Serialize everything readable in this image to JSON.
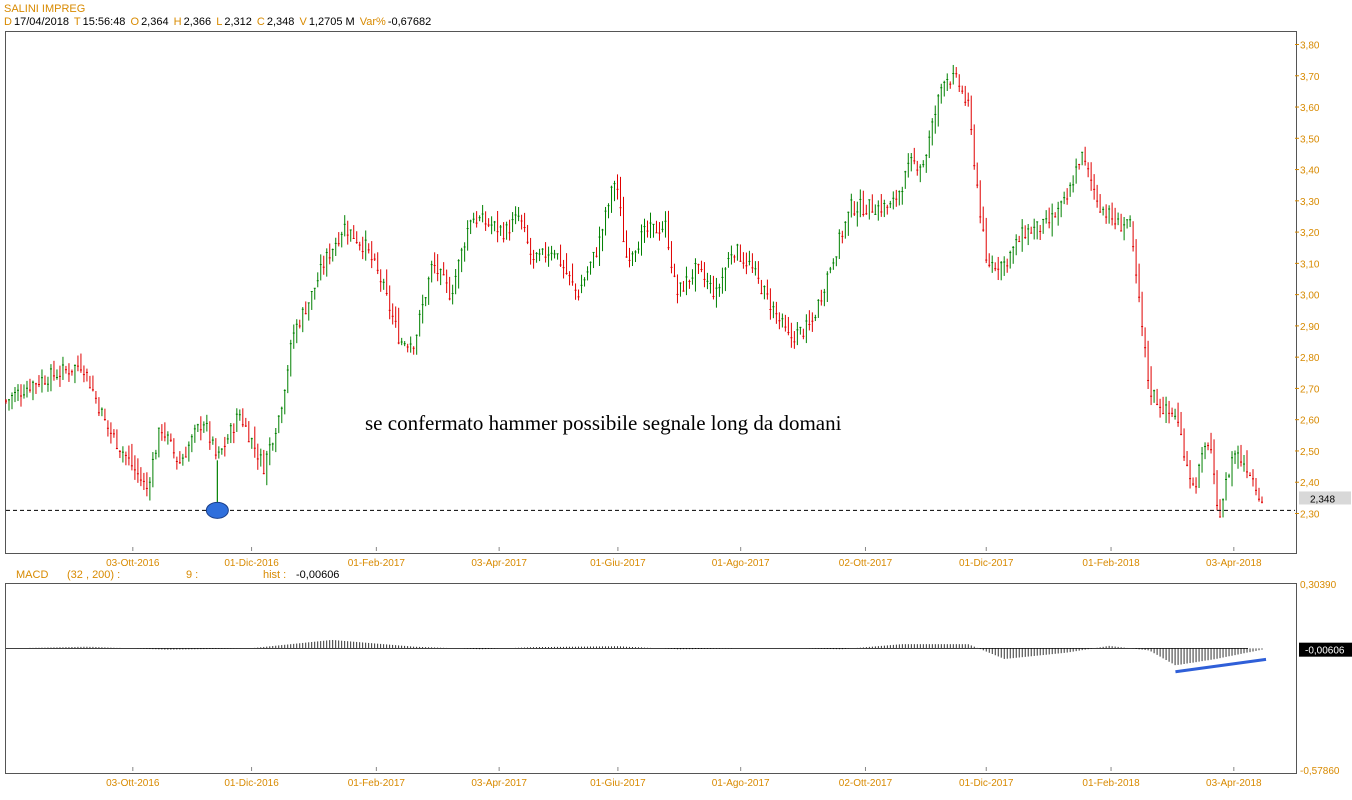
{
  "header": {
    "symbol": "SALINI IMPREG",
    "date_label": "D",
    "date": "17/04/2018",
    "time_label": "T",
    "time": "15:56:48",
    "open_label": "O",
    "open": "2,364",
    "high_label": "H",
    "high": "2,366",
    "low_label": "L",
    "low": "2,312",
    "close_label": "C",
    "close": "2,348",
    "volume_label": "V",
    "volume": "1,2705 M",
    "var_label": "Var%",
    "var": "-0,67682"
  },
  "macd_header": {
    "name": "MACD",
    "params": "(32 , 200) :",
    "signal": "9 :",
    "hist_label": "hist :",
    "hist_value": "-0,00606"
  },
  "annotation": "se confermato hammer possibile segnale long da domani",
  "colors": {
    "up": "#008000",
    "down": "#e00000",
    "axis_text": "#d88a00",
    "marker": "#2f6fdc",
    "trendline": "#2f5fd8"
  },
  "chart_data": [
    {
      "type": "candlestick",
      "title": "SALINI IMPREG",
      "y_ticks": [
        "3,80",
        "3,70",
        "3,60",
        "3,50",
        "3,40",
        "3,30",
        "3,20",
        "3,10",
        "3,00",
        "2,90",
        "2,80",
        "2,70",
        "2,60",
        "2,50",
        "2,40",
        "2,30"
      ],
      "ylim": [
        2.18,
        3.84
      ],
      "x_ticks": [
        "03-Ott-2016",
        "01-Dic-2016",
        "01-Feb-2017",
        "03-Apr-2017",
        "01-Giu-2017",
        "01-Ago-2017",
        "02-Ott-2017",
        "01-Dic-2017",
        "01-Feb-2018",
        "03-Apr-2018"
      ],
      "x_range": [
        "2016-08-01",
        "2018-04-17"
      ],
      "last_price_label": "2,348",
      "support_level": 2.31,
      "hammer_marker": {
        "date": "2016-11-14",
        "price": 2.31
      },
      "close_path": [
        [
          "2016-08-01",
          2.66
        ],
        [
          "2016-08-15",
          2.72
        ],
        [
          "2016-09-01",
          2.76
        ],
        [
          "2016-09-08",
          2.78
        ],
        [
          "2016-09-20",
          2.58
        ],
        [
          "2016-10-03",
          2.45
        ],
        [
          "2016-10-10",
          2.38
        ],
        [
          "2016-10-17",
          2.58
        ],
        [
          "2016-10-26",
          2.46
        ],
        [
          "2016-11-07",
          2.6
        ],
        [
          "2016-11-14",
          2.47
        ],
        [
          "2016-11-25",
          2.62
        ],
        [
          "2016-12-07",
          2.45
        ],
        [
          "2016-12-15",
          2.62
        ],
        [
          "2016-12-22",
          2.88
        ],
        [
          "2016-12-31",
          3.0
        ],
        [
          "2017-01-06",
          3.1
        ],
        [
          "2017-01-16",
          3.22
        ],
        [
          "2017-01-27",
          3.15
        ],
        [
          "2017-02-03",
          3.05
        ],
        [
          "2017-02-13",
          2.85
        ],
        [
          "2017-02-20",
          2.85
        ],
        [
          "2017-03-01",
          3.1
        ],
        [
          "2017-03-10",
          3.0
        ],
        [
          "2017-03-20",
          3.25
        ],
        [
          "2017-03-31",
          3.22
        ],
        [
          "2017-04-06",
          3.2
        ],
        [
          "2017-04-13",
          3.25
        ],
        [
          "2017-04-20",
          3.1
        ],
        [
          "2017-04-30",
          3.15
        ],
        [
          "2017-05-12",
          3.0
        ],
        [
          "2017-05-22",
          3.15
        ],
        [
          "2017-05-31",
          3.38
        ],
        [
          "2017-06-05",
          3.12
        ],
        [
          "2017-06-15",
          3.2
        ],
        [
          "2017-06-25",
          3.22
        ],
        [
          "2017-06-30",
          3.0
        ],
        [
          "2017-07-10",
          3.08
        ],
        [
          "2017-07-20",
          3.0
        ],
        [
          "2017-07-28",
          3.15
        ],
        [
          "2017-08-05",
          3.1
        ],
        [
          "2017-08-15",
          2.98
        ],
        [
          "2017-08-25",
          2.86
        ],
        [
          "2017-09-05",
          2.9
        ],
        [
          "2017-09-15",
          3.1
        ],
        [
          "2017-09-25",
          3.28
        ],
        [
          "2017-10-05",
          3.28
        ],
        [
          "2017-10-15",
          3.28
        ],
        [
          "2017-10-25",
          3.42
        ],
        [
          "2017-10-31",
          3.42
        ],
        [
          "2017-11-10",
          3.7
        ],
        [
          "2017-11-17",
          3.68
        ],
        [
          "2017-11-22",
          3.6
        ],
        [
          "2017-12-01",
          3.1
        ],
        [
          "2017-12-10",
          3.1
        ],
        [
          "2017-12-20",
          3.2
        ],
        [
          "2017-12-31",
          3.22
        ],
        [
          "2018-01-10",
          3.3
        ],
        [
          "2018-01-17",
          3.45
        ],
        [
          "2018-01-27",
          3.28
        ],
        [
          "2018-02-05",
          3.22
        ],
        [
          "2018-02-10",
          3.24
        ],
        [
          "2018-02-20",
          2.7
        ],
        [
          "2018-03-01",
          2.62
        ],
        [
          "2018-03-05",
          2.62
        ],
        [
          "2018-03-14",
          2.38
        ],
        [
          "2018-03-22",
          2.55
        ],
        [
          "2018-03-26",
          2.28
        ],
        [
          "2018-04-03",
          2.5
        ],
        [
          "2018-04-10",
          2.45
        ],
        [
          "2018-04-17",
          2.348
        ]
      ]
    },
    {
      "type": "histogram",
      "title": "MACD",
      "y_top_label": "0,30390",
      "y_bottom_label": "-0,57860",
      "ylim": [
        -0.5786,
        0.3039
      ],
      "last_value_label": "-0,00606",
      "x_ticks": [
        "03-Ott-2016",
        "01-Dic-2016",
        "01-Feb-2017",
        "03-Apr-2017",
        "01-Giu-2017",
        "01-Ago-2017",
        "02-Ott-2017",
        "01-Dic-2017",
        "01-Feb-2018",
        "03-Apr-2018"
      ],
      "hist_path": [
        [
          "2016-08-01",
          0.0
        ],
        [
          "2016-09-10",
          0.008
        ],
        [
          "2016-10-20",
          -0.006
        ],
        [
          "2016-11-30",
          0.0
        ],
        [
          "2017-01-10",
          0.04
        ],
        [
          "2017-02-20",
          0.008
        ],
        [
          "2017-03-25",
          -0.004
        ],
        [
          "2017-04-20",
          0.006
        ],
        [
          "2017-06-01",
          0.01
        ],
        [
          "2017-07-01",
          -0.004
        ],
        [
          "2017-08-20",
          0.002
        ],
        [
          "2017-09-20",
          -0.004
        ],
        [
          "2017-10-20",
          0.02
        ],
        [
          "2017-11-22",
          0.02
        ],
        [
          "2017-12-10",
          -0.05
        ],
        [
          "2018-01-10",
          -0.02
        ],
        [
          "2018-01-31",
          0.012
        ],
        [
          "2018-02-20",
          -0.01
        ],
        [
          "2018-03-05",
          -0.08
        ],
        [
          "2018-03-25",
          -0.05
        ],
        [
          "2018-04-17",
          -0.006
        ]
      ],
      "trendline": [
        [
          "2018-03-05",
          -0.11
        ],
        [
          "2018-04-19",
          -0.052
        ]
      ]
    }
  ]
}
